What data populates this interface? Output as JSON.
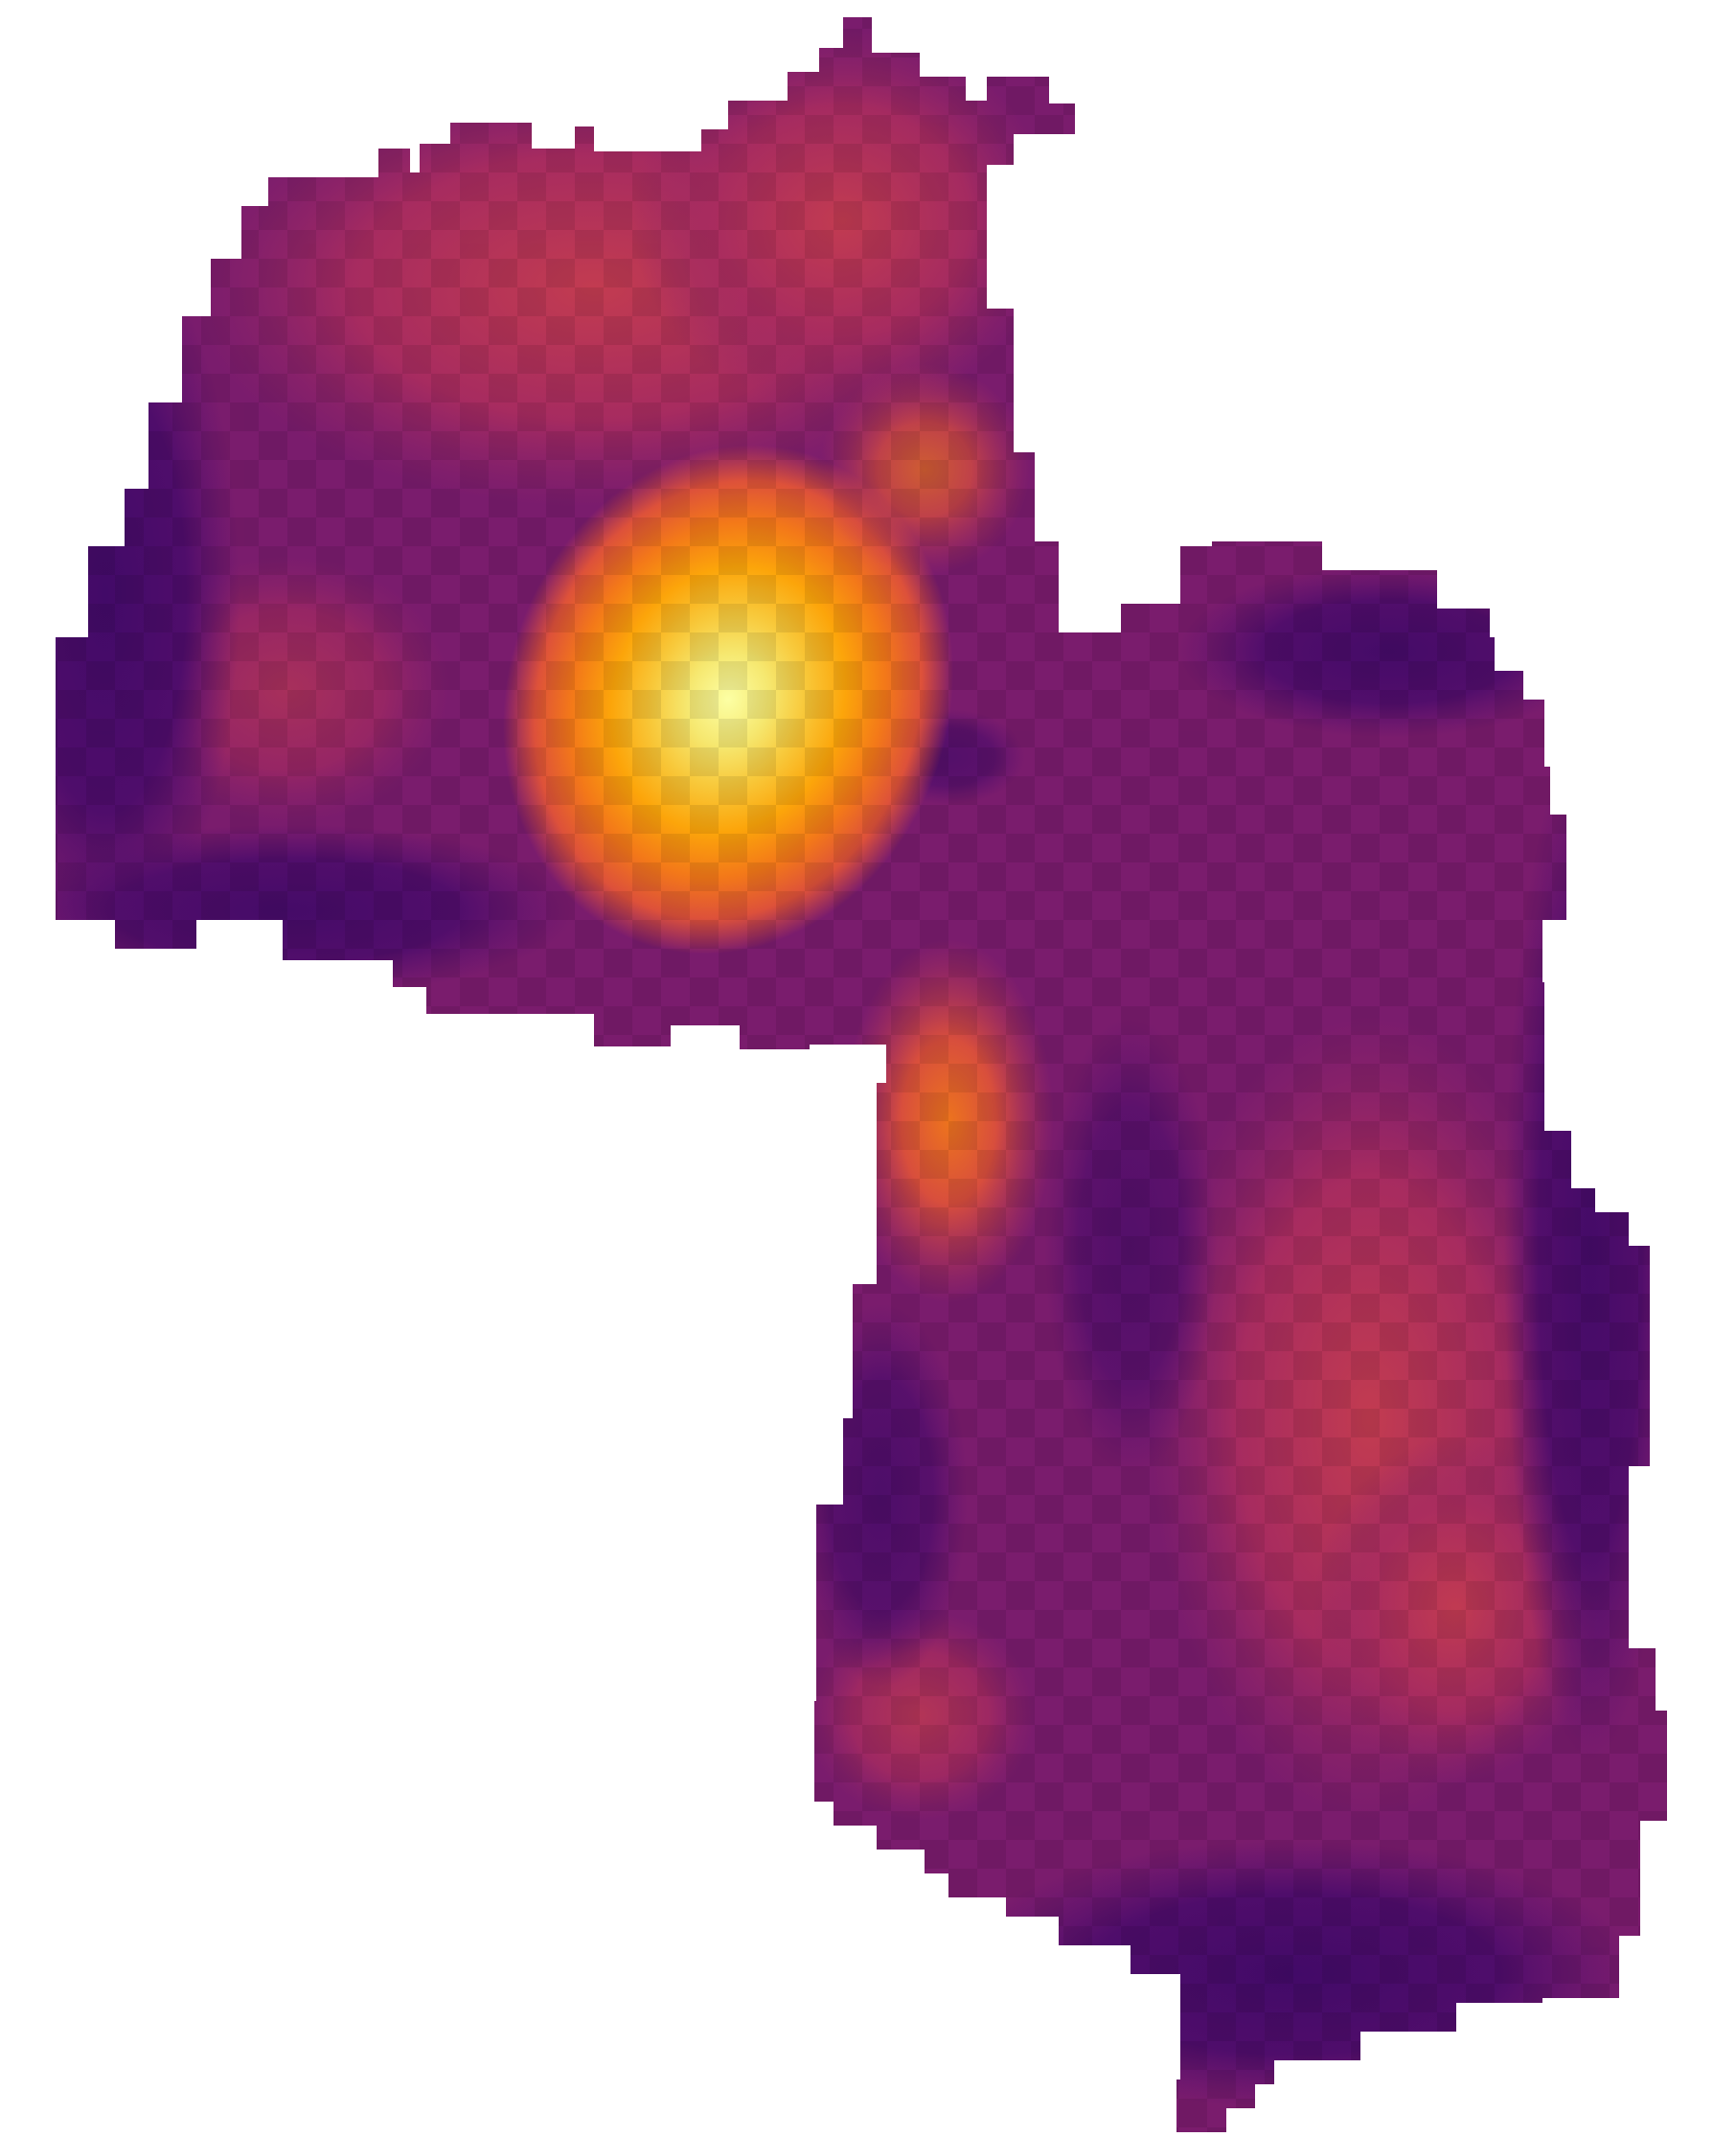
{
  "map": {
    "type": "raster-heatmap",
    "colormap": "inferno",
    "colormap_stops": [
      {
        "t": 0.0,
        "color": "#000004"
      },
      {
        "t": 0.1,
        "color": "#160b39"
      },
      {
        "t": 0.2,
        "color": "#420a68"
      },
      {
        "t": 0.3,
        "color": "#6a176e"
      },
      {
        "t": 0.4,
        "color": "#932667"
      },
      {
        "t": 0.5,
        "color": "#bc3754"
      },
      {
        "t": 0.6,
        "color": "#dd513a"
      },
      {
        "t": 0.7,
        "color": "#f37819"
      },
      {
        "t": 0.8,
        "color": "#fca50a"
      },
      {
        "t": 0.9,
        "color": "#f6d746"
      },
      {
        "t": 1.0,
        "color": "#fcffa4"
      }
    ],
    "background_color": "#ffffff",
    "legend": "none",
    "axes": "none",
    "hotspots": [
      {
        "label": "",
        "intensity": 1.0
      },
      {
        "label": "",
        "intensity": 0.74
      },
      {
        "label": "",
        "intensity": 0.62
      },
      {
        "label": "",
        "intensity": 0.6
      },
      {
        "label": "",
        "intensity": 0.58
      },
      {
        "label": "",
        "intensity": 0.52
      }
    ]
  }
}
